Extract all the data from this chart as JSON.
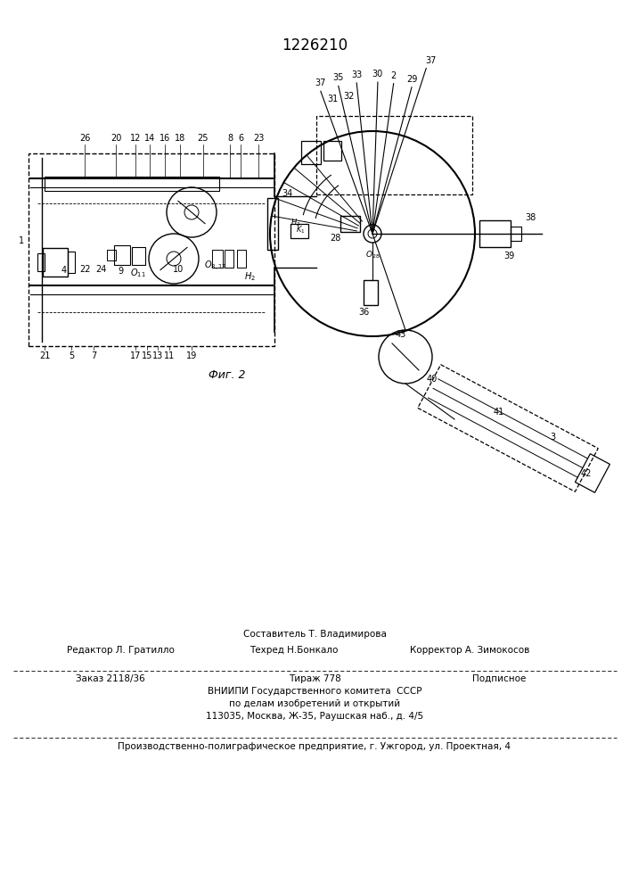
{
  "patent_number": "1226210",
  "fig_label": "Фиг. 2",
  "footer_line1_center": "Составитель Т. Владимирова",
  "footer_line2_left": "Редактор Л. Гратилло",
  "footer_line2_center": "Техред Н.Бонкало",
  "footer_line2_right": "Корректор А. Зимокосов",
  "footer_line3_left": "Заказ 2118/36",
  "footer_line3_center": "Тираж 778",
  "footer_line3_right": "Подписное",
  "footer_line4": "ВНИИПИ Государственного комитета  СССР",
  "footer_line5": "по делам изобретений и открытий",
  "footer_line6": "113035, Москва, Ж-35, Раушская наб., д. 4/5",
  "footer_line7": "Производственно-полиграфическое предприятие, г. Ужгород, ул. Проектная, 4",
  "bg_color": "#ffffff",
  "text_color": "#000000"
}
